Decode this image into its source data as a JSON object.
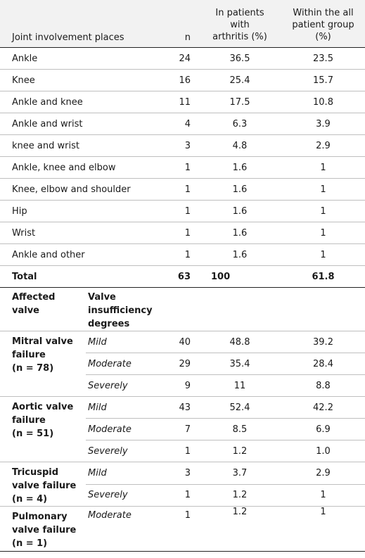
{
  "header": {
    "col1": "Joint involvement places",
    "col2": "n",
    "col3_line1": "In patients",
    "col3_line2": "with",
    "col3_line3": "arthritis (%)",
    "col4_line1": "Within the all",
    "col4_line2": "patient group",
    "col4_line3": "(%)"
  },
  "joints": [
    {
      "place": "Ankle",
      "n": "24",
      "arthritis": "36.5",
      "all": "23.5"
    },
    {
      "place": "Knee",
      "n": "16",
      "arthritis": "25.4",
      "all": "15.7"
    },
    {
      "place": "Ankle and knee",
      "n": "11",
      "arthritis": "17.5",
      "all": "10.8"
    },
    {
      "place": "Ankle and wrist",
      "n": "4",
      "arthritis": "6.3",
      "all": "3.9"
    },
    {
      "place": "knee and wrist",
      "n": "3",
      "arthritis": "4.8",
      "all": "2.9"
    },
    {
      "place": "Ankle, knee and elbow",
      "n": "1",
      "arthritis": "1.6",
      "all": "1"
    },
    {
      "place": "Knee, elbow and shoulder",
      "n": "1",
      "arthritis": "1.6",
      "all": "1"
    },
    {
      "place": "Hip",
      "n": "1",
      "arthritis": "1.6",
      "all": "1"
    },
    {
      "place": "Wrist",
      "n": "1",
      "arthritis": "1.6",
      "all": "1"
    },
    {
      "place": "Ankle and other",
      "n": "1",
      "arthritis": "1.6",
      "all": "1"
    }
  ],
  "total": {
    "label": "Total",
    "n": "63",
    "arthritis": "100",
    "all": "61.8"
  },
  "valve_header": {
    "col1_line1": "Affected",
    "col1_line2": "valve",
    "col2_line1": "Valve",
    "col2_line2": "insufficiency",
    "col2_line3": "degrees"
  },
  "valves": [
    {
      "name_line1": "Mitral valve",
      "name_line2": "failure",
      "name_line3": "(n = 78)",
      "rows": [
        {
          "degree": "Mild",
          "n": "40",
          "arthritis": "48.8",
          "all": "39.2"
        },
        {
          "degree": "Moderate",
          "n": "29",
          "arthritis": "35.4",
          "all": "28.4"
        },
        {
          "degree": "Severely",
          "n": "9",
          "arthritis": "11",
          "all": "8.8"
        }
      ]
    },
    {
      "name_line1": "Aortic valve",
      "name_line2": "failure",
      "name_line3": "(n = 51)",
      "rows": [
        {
          "degree": "Mild",
          "n": "43",
          "arthritis": "52.4",
          "all": "42.2"
        },
        {
          "degree": "Moderate",
          "n": "7",
          "arthritis": "8.5",
          "all": "6.9"
        },
        {
          "degree": "Severely",
          "n": "1",
          "arthritis": "1.2",
          "all": "1.0"
        }
      ]
    },
    {
      "name_line1": "Tricuspid",
      "name_line2": "valve failure",
      "name_line3": "(n = 4)",
      "rows": [
        {
          "degree": "Mild",
          "n": "3",
          "arthritis": "3.7",
          "all": "2.9"
        },
        {
          "degree": "Severely",
          "n": "1",
          "arthritis": "1.2",
          "all": "1"
        }
      ]
    },
    {
      "name_line1": "Pulmonary",
      "name_line2": "valve failure",
      "name_line3": "(n = 1)",
      "rows": [
        {
          "degree": "Moderate",
          "n": "1",
          "arthritis": "1.2",
          "all": "1"
        }
      ]
    }
  ]
}
